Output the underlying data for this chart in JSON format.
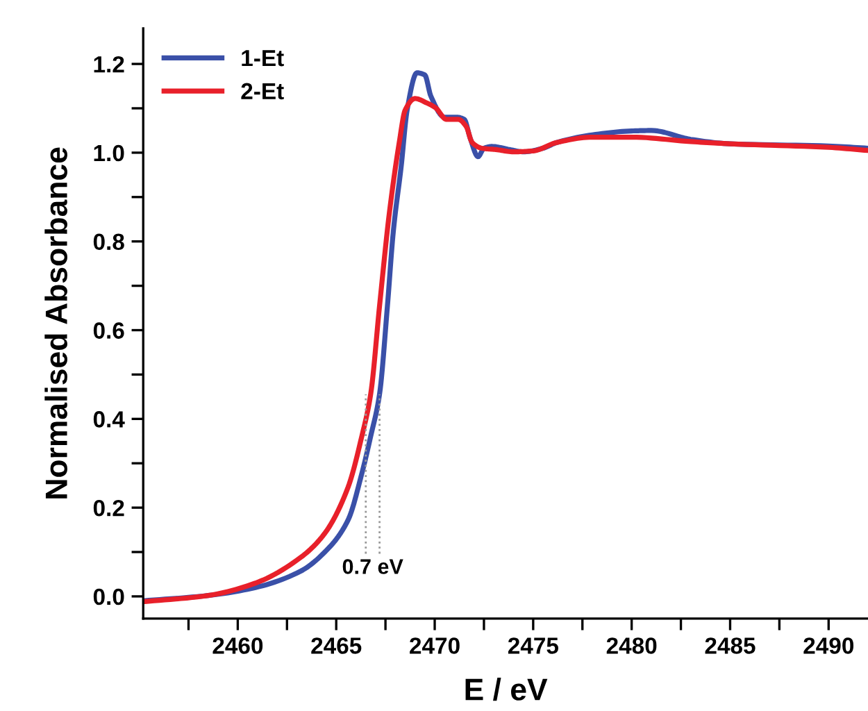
{
  "chart_data": {
    "type": "line",
    "xlabel": "E / eV",
    "ylabel": "Normalised Absorbance",
    "xlim": [
      2455.2,
      2492
    ],
    "ylim": [
      -0.05,
      1.28
    ],
    "xticks": [
      {
        "value": 2457.5,
        "label": null
      },
      2460,
      {
        "value": 2462.5,
        "label": null
      },
      2465,
      {
        "value": 2467.5,
        "label": null
      },
      2470,
      {
        "value": 2472.5,
        "label": null
      },
      2475,
      {
        "value": 2477.5,
        "label": null
      },
      2480,
      {
        "value": 2482.5,
        "label": null
      },
      2485,
      {
        "value": 2487.5,
        "label": null
      },
      2490
    ],
    "yticks": [
      {
        "value": 0.0,
        "label": "0.0"
      },
      {
        "value": 0.1,
        "label": null
      },
      0.2,
      {
        "value": 0.3,
        "label": null
      },
      0.4,
      {
        "value": 0.5,
        "label": null
      },
      0.6,
      {
        "value": 0.7,
        "label": null
      },
      0.8,
      {
        "value": 0.9,
        "label": null
      },
      {
        "value": 1.0,
        "label": "1.0"
      },
      {
        "value": 1.1,
        "label": null
      },
      1.2
    ],
    "grid": false,
    "legend": "top left",
    "marker": "none",
    "line_style": "solid",
    "series": [
      {
        "name": "1-Et",
        "color": "#3a50a8",
        "x": [
          2455.2,
          2458.5,
          2460.9,
          2463.2,
          2464.4,
          2465.6,
          2466.3,
          2466.75,
          2467.2,
          2467.6,
          2467.9,
          2468.3,
          2468.6,
          2469.1,
          2469.5,
          2469.8,
          2470.5,
          2471.1,
          2471.5,
          2471.8,
          2472.2,
          2472.5,
          2472.9,
          2473.8,
          2474.5,
          2475.5,
          2476.2,
          2478,
          2480,
          2481,
          2483,
          2485,
          2490,
          2492
        ],
        "values": [
          -0.01,
          0.002,
          0.02,
          0.057,
          0.099,
          0.172,
          0.277,
          0.361,
          0.456,
          0.655,
          0.823,
          0.97,
          1.096,
          1.18,
          1.175,
          1.128,
          1.08,
          1.08,
          1.075,
          1.033,
          0.991,
          1.01,
          1.014,
          1.007,
          1.002,
          1.01,
          1.023,
          1.04,
          1.049,
          1.05,
          1.03,
          1.02,
          1.015,
          1.01
        ]
      },
      {
        "name": "2-Et",
        "color": "#e8202a",
        "x": [
          2455.2,
          2458.5,
          2460.9,
          2463.2,
          2464.4,
          2465.6,
          2466.3,
          2466.75,
          2467.2,
          2467.7,
          2468.2,
          2468.5,
          2469,
          2469.6,
          2470.05,
          2470.6,
          2471.2,
          2471.6,
          2471.9,
          2472.4,
          2473.1,
          2474,
          2475,
          2476.2,
          2478,
          2480,
          2483,
          2485,
          2490,
          2492
        ],
        "values": [
          -0.012,
          0.002,
          0.03,
          0.088,
          0.141,
          0.246,
          0.361,
          0.456,
          0.655,
          0.865,
          1.023,
          1.096,
          1.122,
          1.112,
          1.101,
          1.075,
          1.075,
          1.059,
          1.023,
          1.01,
          1.007,
          1.002,
          1.004,
          1.023,
          1.035,
          1.035,
          1.025,
          1.02,
          1.012,
          1.005
        ]
      }
    ],
    "ref_lines": [
      {
        "axis": "x",
        "value": 2466.5,
        "color": "#999999",
        "line_style": "dotted"
      },
      {
        "axis": "x",
        "value": 2467.2,
        "color": "#999999",
        "line_style": "dotted"
      }
    ],
    "annotations": [
      "0.7 eV"
    ]
  }
}
